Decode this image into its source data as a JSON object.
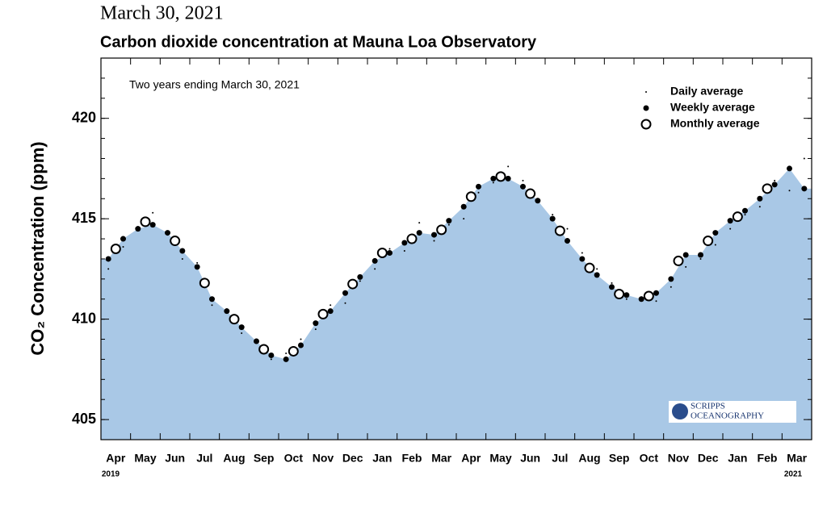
{
  "chart_data": {
    "type": "scatter",
    "date": "March 30, 2021",
    "title": "Carbon dioxide concentration at Mauna Loa Observatory",
    "subtitle": "Two years ending March 30, 2021",
    "y_label": "CO₂ Concentration (ppm)",
    "logo": [
      "SCRIPPS",
      "OCEANOGRAPHY"
    ],
    "categories": [
      "Apr",
      "May",
      "Jun",
      "Jul",
      "Aug",
      "Sep",
      "Oct",
      "Nov",
      "Dec",
      "Jan",
      "Feb",
      "Mar",
      "Apr",
      "May",
      "Jun",
      "Jul",
      "Aug",
      "Sep",
      "Oct",
      "Nov",
      "Dec",
      "Jan",
      "Feb",
      "Mar"
    ],
    "start_year": "2019",
    "end_year": "2021",
    "ylim": [
      404,
      423
    ],
    "yticks": [
      405,
      410,
      415,
      420
    ],
    "area_color": "#a9c8e6",
    "legend": "upper right",
    "series": [
      {
        "name": "Daily average",
        "color": "#000000",
        "per_month": 2,
        "values": [
          412.5,
          413.6,
          414.6,
          415.3,
          414.2,
          413.0,
          412.8,
          410.7,
          410.5,
          409.3,
          409.0,
          408.0,
          408.3,
          409.0,
          409.5,
          410.7,
          410.8,
          411.9,
          412.5,
          413.5,
          413.4,
          414.8,
          413.9,
          414.7,
          415.0,
          416.3,
          416.8,
          417.6,
          416.9,
          416.0,
          415.2,
          414.5,
          413.3,
          412.5,
          411.8,
          411.0,
          411.1,
          410.9,
          411.6,
          412.6,
          413.0,
          413.7,
          414.5,
          415.2,
          415.6,
          416.9,
          416.4,
          418.0
        ]
      },
      {
        "name": "Weekly average",
        "color": "#000000",
        "per_month": 2,
        "values": [
          413.0,
          414.0,
          414.5,
          414.7,
          414.3,
          413.4,
          412.6,
          411.0,
          410.4,
          409.6,
          408.9,
          408.2,
          408.0,
          408.7,
          409.8,
          410.4,
          411.3,
          412.1,
          412.9,
          413.3,
          413.8,
          414.3,
          414.2,
          414.9,
          415.6,
          416.6,
          417.0,
          417.0,
          416.6,
          415.9,
          415.0,
          413.9,
          413.0,
          412.2,
          411.6,
          411.2,
          411.0,
          411.3,
          412.0,
          413.2,
          413.2,
          414.3,
          414.9,
          415.4,
          416.0,
          416.7,
          417.5,
          416.5
        ]
      },
      {
        "name": "Monthly average",
        "color": "#000000",
        "per_month": 1,
        "values": [
          413.5,
          414.85,
          413.9,
          411.8,
          410.0,
          408.5,
          408.4,
          410.25,
          411.75,
          413.3,
          414.0,
          414.45,
          416.1,
          417.1,
          416.25,
          414.4,
          412.55,
          411.25,
          411.15,
          412.9,
          413.9,
          415.1,
          416.5,
          null
        ]
      }
    ]
  }
}
